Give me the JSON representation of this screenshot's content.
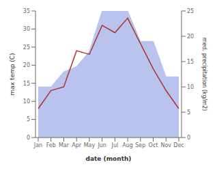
{
  "chart_data": {
    "type": "line",
    "categories": [
      "Jan",
      "Feb",
      "Mar",
      "Apr",
      "May",
      "Jun",
      "Jul",
      "Aug",
      "Sep",
      "Oct",
      "Nov",
      "Dec"
    ],
    "series": [
      {
        "type": "area",
        "axis": "y2",
        "color": "#b8c4ee",
        "values": [
          10,
          10,
          13,
          14,
          17,
          25,
          25,
          25,
          19,
          19,
          12,
          12
        ]
      },
      {
        "type": "line",
        "color": "#b03030",
        "values": [
          8,
          13,
          14,
          24,
          23,
          31,
          29,
          33,
          26,
          19,
          13,
          8
        ]
      }
    ],
    "xlabel": "date (month)",
    "ylabel": "max temp (C)",
    "y2label": "med. precipitation (kg/m2)",
    "ylim": [
      0,
      35
    ],
    "yticks": [
      0,
      5,
      10,
      15,
      20,
      25,
      30,
      35
    ],
    "y2lim": [
      0,
      25
    ],
    "y2ticks": [
      0,
      5,
      10,
      15,
      20,
      25
    ],
    "grid": false
  }
}
